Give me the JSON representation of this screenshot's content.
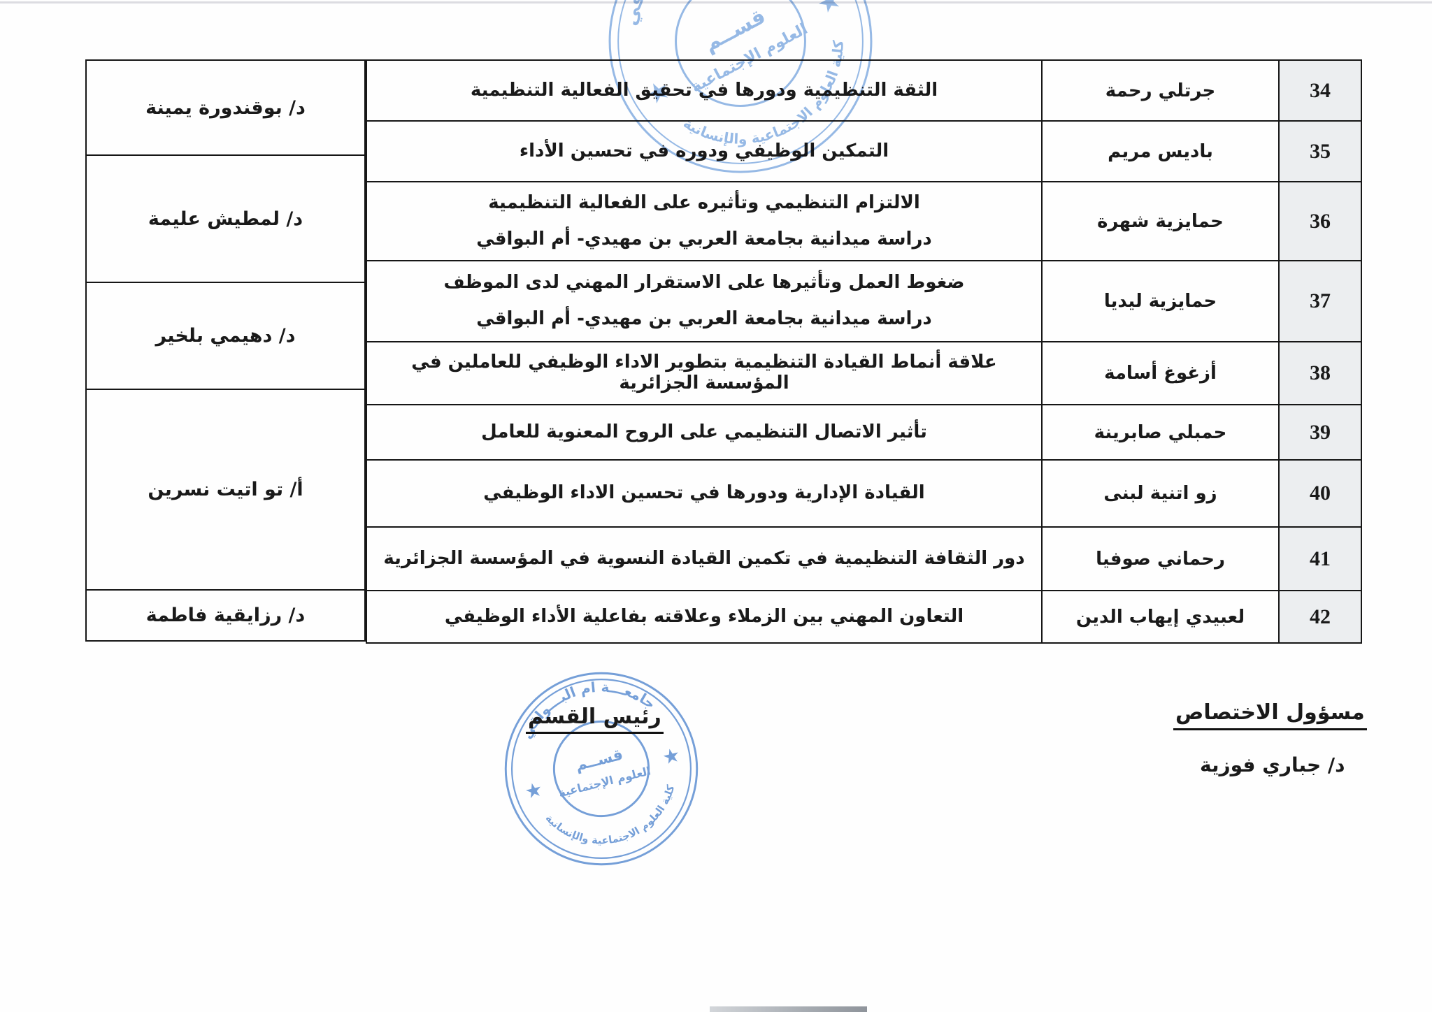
{
  "page": {
    "bg": "#fefefe",
    "ink": "#1a1a1a",
    "number_cell_bg": "#eceef0",
    "stamp_blue_top": "#7da9e0",
    "stamp_blue_bottom": "#5d8fd2"
  },
  "table": {
    "rows": [
      {
        "num": "34",
        "student": "جرتلي رحمة",
        "title_lines": [
          "الثقة التنظيمية ودورها في تحقيق الفعالية التنظيمية"
        ]
      },
      {
        "num": "35",
        "student": "باديس مريم",
        "title_lines": [
          "التمكين الوظيفي ودوره في تحسين الأداء"
        ]
      },
      {
        "num": "36",
        "student": "حمايزية شهرة",
        "title_lines": [
          "الالتزام التنظيمي وتأثيره على الفعالية التنظيمية",
          "دراسة ميدانية بجامعة العربي بن مهيدي- أم البواقي"
        ]
      },
      {
        "num": "37",
        "student": "حمايزية ليديا",
        "title_lines": [
          "ضغوط العمل وتأثيرها على الاستقرار المهني لدى الموظف",
          "دراسة ميدانية بجامعة العربي بن مهيدي- أم البواقي"
        ]
      },
      {
        "num": "38",
        "student": "أزغوغ أسامة",
        "title_lines": [
          "علاقة أنماط القيادة التنظيمية بتطوير الاداء الوظيفي للعاملين في المؤسسة الجزائرية"
        ]
      },
      {
        "num": "39",
        "student": "حمبلي صابرينة",
        "title_lines": [
          "تأثير الاتصال التنظيمي على الروح المعنوية للعامل"
        ]
      },
      {
        "num": "40",
        "student": "زو اتنية لبنى",
        "title_lines": [
          "القيادة الإدارية ودورها في تحسين الاداء الوظيفي"
        ]
      },
      {
        "num": "41",
        "student": "رحماني صوفيا",
        "title_lines": [
          "دور الثقافة التنظيمية في تكمين القيادة النسوية في المؤسسة الجزائرية"
        ]
      },
      {
        "num": "42",
        "student": "لعبيدي إيهاب الدين",
        "title_lines": [
          "التعاون المهني بين الزملاء وعلاقته بفاعلية الأداء الوظيفي"
        ]
      }
    ],
    "supervisors": [
      {
        "label": "د/ بوقندورة يمينة"
      },
      {
        "label": "د/ لمطيش عليمة"
      },
      {
        "label": "د/ دهيمي بلخير"
      },
      {
        "label": "أ/ تو اتيت نسرين"
      },
      {
        "label": "د/ رزايقية فاطمة"
      }
    ]
  },
  "footer": {
    "dept_head_label": "رئيس القسم",
    "specialty_head_label": "مسؤول الاختصاص",
    "specialty_head_name": "د/ جباري فوزية"
  },
  "stamp": {
    "top_arc": "جامعـــة ام البـــواقي",
    "bottom_arc": "كلية العلوم الاجتماعية والإنسانية",
    "center_line1": "قســم",
    "center_line2": "العلوم الإجتماعية",
    "star": "★"
  }
}
